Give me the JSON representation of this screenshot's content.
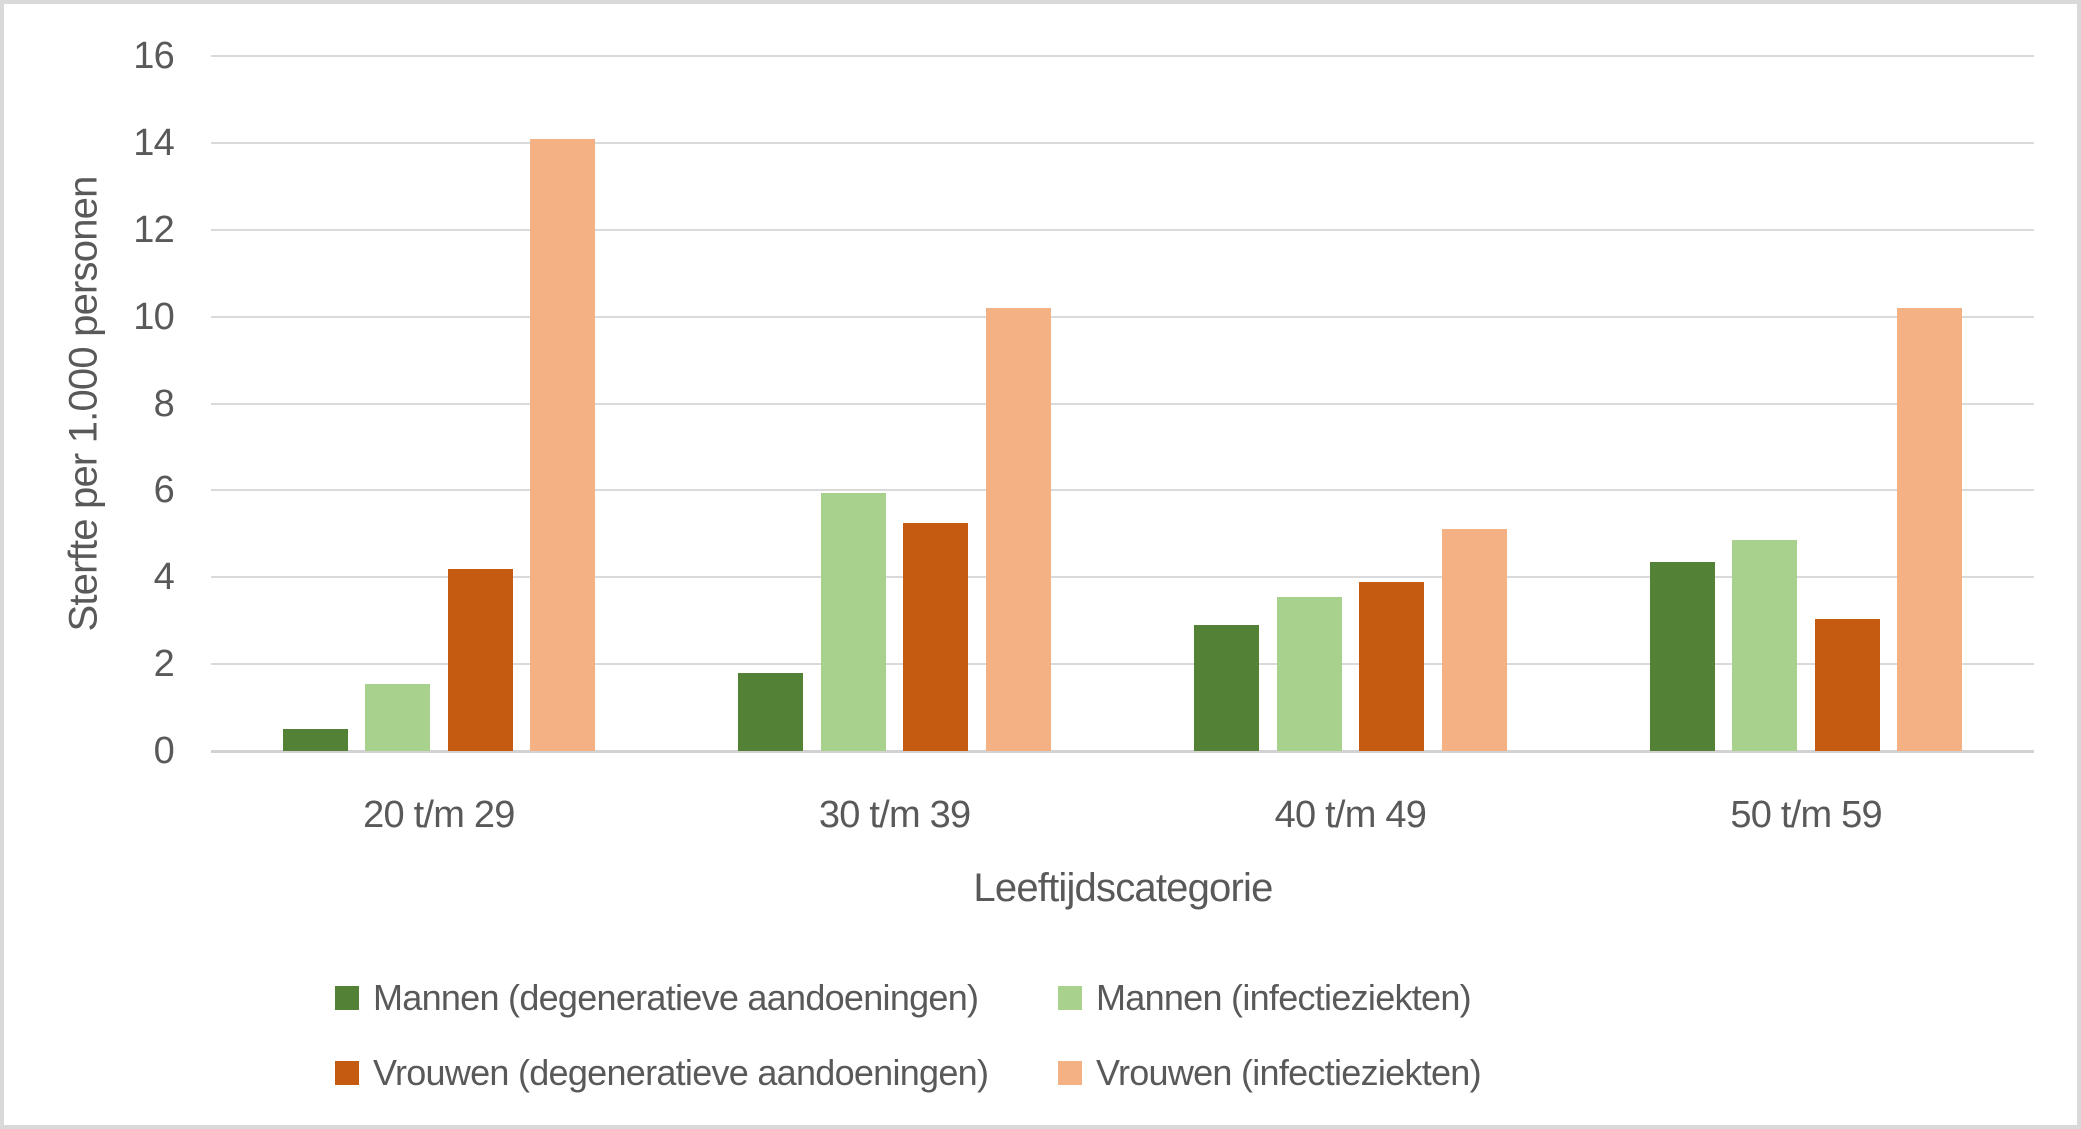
{
  "chart_data": {
    "type": "bar",
    "title": "",
    "categories": [
      "20 t/m 29",
      "30 t/m 39",
      "40 t/m 49",
      "50 t/m 59"
    ],
    "series": [
      {
        "name": "Mannen (degeneratieve aandoeningen)",
        "color": "#538135",
        "values": [
          0.5,
          1.8,
          2.9,
          4.35
        ]
      },
      {
        "name": "Mannen (infectieziekten)",
        "color": "#a9d18e",
        "values": [
          1.55,
          5.95,
          3.55,
          4.85
        ]
      },
      {
        "name": "Vrouwen (degeneratieve aandoeningen)",
        "color": "#c55a11",
        "values": [
          4.2,
          5.25,
          3.9,
          3.05
        ]
      },
      {
        "name": "Vrouwen (infectieziekten)",
        "color": "#f4b183",
        "values": [
          14.1,
          10.2,
          5.1,
          10.2
        ]
      }
    ],
    "xlabel": "Leeftijdscategorie",
    "ylabel": "Sterfte per 1.000 personen",
    "ylim": [
      0,
      16
    ],
    "yticks": [
      0,
      2,
      4,
      6,
      8,
      10,
      12,
      14,
      16
    ],
    "grid": true,
    "legend_position": "bottom",
    "legend_rows": [
      [
        0,
        1
      ],
      [
        2,
        3
      ]
    ]
  },
  "style": {
    "gridline_color": "#dadada",
    "axisline_color": "#d2d2d2",
    "text_color": "#595959",
    "border_color": "#d9d9d9",
    "background": "#ffffff"
  }
}
